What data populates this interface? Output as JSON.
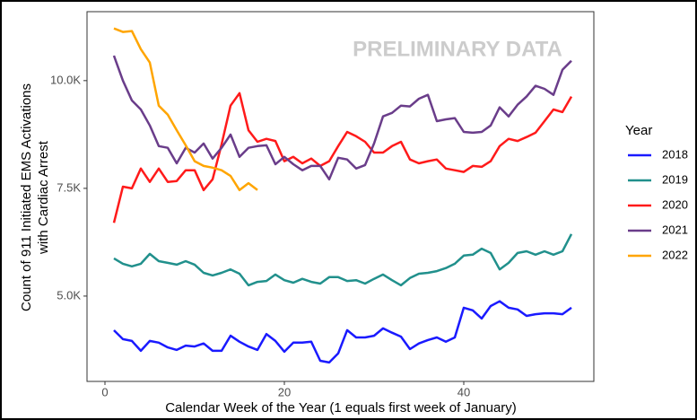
{
  "chart_data": {
    "type": "line",
    "ylabel": [
      "Count of 911 Initiated EMS Activations",
      "with Cardiac Arrest"
    ],
    "xlabel": "Calendar Week of the Year (1 equals first week of January)",
    "annotation": "PRELIMINARY DATA",
    "legend_title": "Year",
    "legend": "right",
    "grid": false,
    "xlim": [
      -2,
      54.5
    ],
    "ylim": [
      3020,
      11600
    ],
    "xticks": [
      0,
      20,
      40
    ],
    "yticks": [
      {
        "value": 5000,
        "label": "5.0K"
      },
      {
        "value": 7500,
        "label": "7.5K"
      },
      {
        "value": 10000,
        "label": "10.0K"
      }
    ],
    "x": [
      1,
      2,
      3,
      4,
      5,
      6,
      7,
      8,
      9,
      10,
      11,
      12,
      13,
      14,
      15,
      16,
      17,
      18,
      19,
      20,
      21,
      22,
      23,
      24,
      25,
      26,
      27,
      28,
      29,
      30,
      31,
      32,
      33,
      34,
      35,
      36,
      37,
      38,
      39,
      40,
      41,
      42,
      43,
      44,
      45,
      46,
      47,
      48,
      49,
      50,
      51,
      52
    ],
    "series": [
      {
        "name": "2018",
        "color": "#1a1aff",
        "values": [
          4208,
          4000,
          3960,
          3730,
          3960,
          3920,
          3810,
          3750,
          3850,
          3830,
          3900,
          3730,
          3730,
          4080,
          3940,
          3830,
          3750,
          4120,
          3960,
          3710,
          3920,
          3920,
          3940,
          3500,
          3460,
          3670,
          4210,
          4040,
          4040,
          4080,
          4250,
          4150,
          4060,
          3770,
          3900,
          3980,
          4040,
          3940,
          4040,
          4730,
          4670,
          4480,
          4770,
          4880,
          4730,
          4690,
          4540,
          4580,
          4600,
          4600,
          4580,
          4730
        ]
      },
      {
        "name": "2019",
        "color": "#21908c",
        "values": [
          5875,
          5750,
          5690,
          5750,
          5980,
          5810,
          5770,
          5730,
          5810,
          5730,
          5540,
          5480,
          5540,
          5620,
          5520,
          5250,
          5330,
          5350,
          5500,
          5370,
          5310,
          5400,
          5330,
          5290,
          5440,
          5440,
          5350,
          5370,
          5290,
          5400,
          5500,
          5370,
          5250,
          5420,
          5520,
          5540,
          5580,
          5650,
          5750,
          5940,
          5960,
          6100,
          6000,
          5620,
          5770,
          6000,
          6040,
          5960,
          6040,
          5960,
          6040,
          6440
        ]
      },
      {
        "name": "2020",
        "color": "#ff1a1a",
        "values": [
          6700,
          7540,
          7500,
          7960,
          7650,
          7960,
          7650,
          7670,
          7920,
          7920,
          7460,
          7710,
          8520,
          9420,
          9710,
          8850,
          8580,
          8650,
          8600,
          8130,
          8230,
          8080,
          8190,
          8020,
          8130,
          8480,
          8810,
          8710,
          8580,
          8330,
          8330,
          8480,
          8580,
          8170,
          8080,
          8130,
          8170,
          7960,
          7920,
          7880,
          8020,
          8000,
          8130,
          8480,
          8650,
          8600,
          8690,
          8790,
          9060,
          9330,
          9270,
          9630
        ]
      },
      {
        "name": "2021",
        "color": "#6a3d8a",
        "values": [
          10580,
          10000,
          9540,
          9330,
          8960,
          8480,
          8440,
          8080,
          8440,
          8330,
          8540,
          8190,
          8440,
          8750,
          8230,
          8440,
          8480,
          8500,
          8060,
          8230,
          8060,
          7920,
          8020,
          8020,
          7710,
          8210,
          8170,
          7960,
          8040,
          8540,
          9170,
          9250,
          9420,
          9400,
          9580,
          9670,
          9060,
          9100,
          9130,
          8810,
          8790,
          8810,
          8960,
          9380,
          9170,
          9440,
          9630,
          9880,
          9810,
          9670,
          10250,
          10460
        ]
      },
      {
        "name": "2022",
        "color": "#ffa500",
        "values": [
          11210,
          11130,
          11150,
          10730,
          10420,
          9420,
          9210,
          8850,
          8500,
          8130,
          8020,
          7980,
          7920,
          7790,
          7460,
          7620,
          7460,
          null,
          null,
          null,
          null,
          null,
          null,
          null,
          null,
          null,
          null,
          null,
          null,
          null,
          null,
          null,
          null,
          null,
          null,
          null,
          null,
          null,
          null,
          null,
          null,
          null,
          null,
          null,
          null,
          null,
          null,
          null,
          null,
          null,
          null,
          null
        ]
      }
    ]
  }
}
